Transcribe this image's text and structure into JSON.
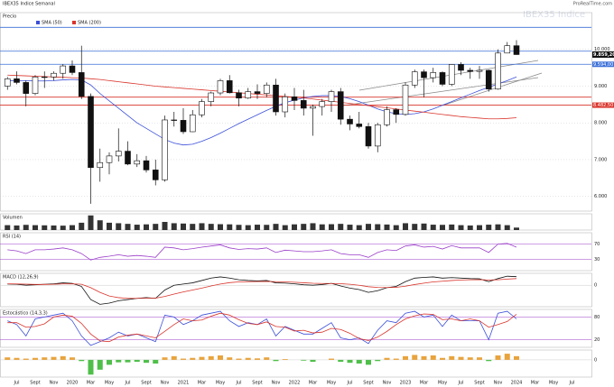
{
  "header": "IBEX35 Indice Semanal",
  "watermark": "IBEX35 Indice",
  "logo": "ProRealTime.com",
  "future_ticks": [
    "Mar",
    "May",
    "Jul"
  ],
  "chart_data": [
    {
      "type": "candlestick",
      "title": "Precio",
      "categories": [
        null,
        "Jul",
        null,
        "Sept",
        null,
        "Nov",
        null,
        "2020",
        null,
        "Mar",
        null,
        "May",
        null,
        "Jul",
        null,
        "Sept",
        null,
        "Nov",
        null,
        "2021",
        null,
        "Mar",
        null,
        "May",
        null,
        "Jul",
        null,
        "Sept",
        null,
        "Nov",
        null,
        "2022",
        null,
        "Mar",
        null,
        "May",
        null,
        "Jul",
        null,
        "Sept",
        null,
        "Nov",
        null,
        "2023",
        null,
        "Mar",
        null,
        "May",
        null,
        "Jul",
        null,
        "Sept",
        null,
        "Nov",
        null,
        "2024"
      ],
      "open": [
        9000,
        9200,
        9100,
        8800,
        9250,
        9250,
        9350,
        9550,
        9370,
        8720,
        6785,
        6920,
        7100,
        7230,
        6880,
        6970,
        6720,
        6450,
        8080,
        8070,
        7760,
        8220,
        8580,
        8815,
        9150,
        8820,
        8675,
        8850,
        8800,
        9030,
        8300,
        8710,
        8610,
        8400,
        8445,
        8580,
        8850,
        8100,
        7970,
        7900,
        7370,
        7950,
        8360,
        8230,
        9030,
        9390,
        9230,
        9370,
        9050,
        9590,
        9430,
        9400,
        9430,
        8920,
        9900,
        10100
      ],
      "high": [
        9250,
        9400,
        9150,
        9300,
        9400,
        9400,
        9600,
        9700,
        10100,
        8800,
        7300,
        7200,
        7850,
        7500,
        7150,
        7100,
        7000,
        8200,
        8300,
        8400,
        8350,
        8650,
        8850,
        9200,
        9300,
        8900,
        8950,
        9050,
        9100,
        9200,
        8800,
        8950,
        8900,
        8500,
        8650,
        8900,
        8950,
        8200,
        8300,
        8000,
        8000,
        8450,
        8400,
        9100,
        9450,
        9450,
        9500,
        9400,
        9600,
        9650,
        9500,
        9550,
        9450,
        10000,
        10200,
        10250
      ],
      "low": [
        8900,
        9050,
        8450,
        8750,
        8950,
        9150,
        9200,
        9300,
        8650,
        5800,
        6400,
        6600,
        6950,
        6850,
        6800,
        6650,
        6300,
        6400,
        7900,
        7700,
        7750,
        8150,
        8450,
        8750,
        8800,
        8450,
        8650,
        8650,
        8700,
        8200,
        8150,
        8350,
        8200,
        7650,
        8200,
        8300,
        7950,
        7800,
        7850,
        7300,
        7200,
        7900,
        8000,
        8200,
        8950,
        8700,
        9100,
        9000,
        9000,
        9300,
        9200,
        9200,
        8850,
        8900,
        9950,
        9850
      ],
      "close": [
        9200,
        9100,
        8800,
        9250,
        9250,
        9350,
        9550,
        9370,
        8720,
        6785,
        6920,
        7100,
        7230,
        6880,
        6970,
        6720,
        6450,
        8080,
        8070,
        7760,
        8220,
        8580,
        8815,
        9150,
        8820,
        8675,
        8850,
        8800,
        9030,
        8300,
        8710,
        8610,
        8400,
        8445,
        8580,
        8850,
        8100,
        7970,
        7900,
        7370,
        7950,
        8360,
        8230,
        9030,
        9390,
        9230,
        9370,
        9050,
        9590,
        9430,
        9400,
        9430,
        8920,
        9900,
        10100,
        9859.2
      ],
      "last_label": "9.859,20",
      "series": [
        {
          "name": "SMA (50)",
          "color": "#3b4fd8",
          "values": [
            9150,
            9150,
            9150,
            9140,
            9140,
            9150,
            9170,
            9180,
            9170,
            9030,
            8800,
            8600,
            8400,
            8200,
            8000,
            7850,
            7700,
            7550,
            7450,
            7400,
            7420,
            7500,
            7600,
            7720,
            7850,
            7980,
            8100,
            8220,
            8340,
            8450,
            8550,
            8620,
            8680,
            8720,
            8740,
            8740,
            8720,
            8660,
            8580,
            8480,
            8380,
            8300,
            8250,
            8230,
            8250,
            8300,
            8380,
            8480,
            8580,
            8680,
            8780,
            8880,
            8970,
            9060,
            9150,
            9250
          ]
        },
        {
          "name": "SMA (200)",
          "color": "#d9342b",
          "values": [
            9300,
            9290,
            9280,
            9270,
            9260,
            9250,
            9240,
            9230,
            9220,
            9200,
            9180,
            9150,
            9120,
            9090,
            9060,
            9030,
            9000,
            8980,
            8960,
            8940,
            8920,
            8900,
            8880,
            8860,
            8840,
            8820,
            8800,
            8780,
            8760,
            8740,
            8720,
            8700,
            8680,
            8650,
            8620,
            8590,
            8560,
            8530,
            8500,
            8470,
            8440,
            8410,
            8380,
            8350,
            8320,
            8290,
            8260,
            8230,
            8200,
            8170,
            8150,
            8130,
            8110,
            8110,
            8120,
            8140
          ]
        }
      ],
      "levels": [
        {
          "value": 10600,
          "color": "#3b6fd8"
        },
        {
          "value": 9950,
          "color": "#3b6fd8"
        },
        {
          "value": 9594,
          "label": "9.594,00",
          "color": "#3b6fd8"
        },
        {
          "value": 8700,
          "color": "#d9342b"
        },
        {
          "value": 8482.5,
          "label": "8.482,50",
          "color": "#d9342b"
        }
      ],
      "ylim": [
        5600,
        11000
      ],
      "yticks": [
        {
          "value": 10000,
          "label": "10.000"
        },
        {
          "value": 9000,
          "label": "9.000"
        },
        {
          "value": 8000,
          "label": "8.000"
        },
        {
          "value": 7000,
          "label": "7.000"
        },
        {
          "value": 6000,
          "label": "6.000"
        }
      ]
    },
    {
      "type": "bar",
      "title": "Volumen",
      "color": "#333333",
      "ylim": [
        0,
        1000
      ],
      "values": [
        300,
        280,
        320,
        300,
        290,
        280,
        270,
        300,
        450,
        900,
        600,
        450,
        420,
        380,
        330,
        350,
        380,
        500,
        420,
        400,
        380,
        420,
        380,
        360,
        350,
        320,
        300,
        330,
        320,
        380,
        300,
        350,
        380,
        420,
        350,
        360,
        380,
        330,
        300,
        380,
        360,
        340,
        300,
        420,
        380,
        400,
        330,
        320,
        340,
        300,
        280,
        300,
        330,
        350,
        300,
        150
      ]
    },
    {
      "type": "line",
      "title": "RSI (14)",
      "color": "#9b3fc9",
      "ylim": [
        0,
        100
      ],
      "yticks": [
        30,
        70
      ],
      "values": [
        55,
        52,
        45,
        55,
        55,
        57,
        60,
        55,
        45,
        28,
        35,
        38,
        42,
        38,
        40,
        38,
        35,
        62,
        60,
        55,
        58,
        62,
        65,
        68,
        60,
        56,
        58,
        57,
        60,
        48,
        54,
        52,
        50,
        50,
        52,
        55,
        45,
        42,
        42,
        35,
        48,
        55,
        53,
        65,
        68,
        62,
        64,
        57,
        66,
        60,
        60,
        60,
        48,
        70,
        72,
        62
      ]
    },
    {
      "type": "line",
      "title": "MACD (12,26,9)",
      "ylim": [
        -900,
        500
      ],
      "yticks": [
        0
      ],
      "series": [
        {
          "color": "#111111",
          "values": [
            50,
            40,
            0,
            20,
            40,
            60,
            100,
            80,
            -50,
            -600,
            -800,
            -750,
            -650,
            -600,
            -550,
            -520,
            -550,
            -200,
            0,
            50,
            100,
            200,
            300,
            350,
            300,
            230,
            200,
            180,
            200,
            100,
            90,
            60,
            20,
            0,
            30,
            80,
            -30,
            -120,
            -180,
            -300,
            -230,
            -100,
            -50,
            150,
            300,
            330,
            350,
            300,
            320,
            300,
            280,
            270,
            150,
            280,
            380,
            360
          ]
        },
        {
          "color": "#d9342b",
          "values": [
            60,
            55,
            45,
            35,
            35,
            40,
            55,
            60,
            40,
            -100,
            -300,
            -450,
            -520,
            -550,
            -550,
            -540,
            -540,
            -470,
            -370,
            -280,
            -200,
            -120,
            -30,
            50,
            110,
            140,
            150,
            155,
            160,
            150,
            140,
            125,
            105,
            85,
            75,
            75,
            65,
            40,
            0,
            -60,
            -90,
            -95,
            -85,
            -40,
            30,
            90,
            140,
            170,
            200,
            220,
            230,
            235,
            220,
            230,
            260,
            280
          ]
        }
      ]
    },
    {
      "type": "line",
      "title": "Estocástico (14,3,3)",
      "ylim": [
        0,
        100
      ],
      "yticks": [
        20,
        80
      ],
      "series": [
        {
          "color": "#3b4fd8",
          "values": [
            70,
            60,
            30,
            75,
            80,
            85,
            90,
            70,
            30,
            5,
            15,
            25,
            40,
            30,
            35,
            25,
            15,
            85,
            80,
            60,
            70,
            85,
            90,
            95,
            70,
            55,
            65,
            60,
            75,
            30,
            55,
            45,
            35,
            35,
            50,
            65,
            25,
            20,
            25,
            10,
            45,
            70,
            65,
            90,
            95,
            80,
            85,
            55,
            85,
            70,
            70,
            70,
            20,
            90,
            95,
            75
          ]
        },
        {
          "color": "#d9342b",
          "values": [
            65,
            65,
            53,
            55,
            62,
            80,
            85,
            82,
            63,
            35,
            17,
            15,
            27,
            32,
            35,
            30,
            25,
            42,
            60,
            75,
            70,
            72,
            82,
            90,
            85,
            73,
            63,
            60,
            67,
            55,
            53,
            43,
            45,
            38,
            40,
            50,
            47,
            37,
            23,
            18,
            27,
            42,
            60,
            75,
            83,
            88,
            87,
            73,
            75,
            70,
            75,
            70,
            53,
            60,
            68,
            87
          ]
        }
      ]
    },
    {
      "type": "bar",
      "color": "#e8a33c",
      "negative_color": "#4fbf4a",
      "ylim": [
        -70,
        40
      ],
      "yticks": [
        0
      ],
      "values": [
        10,
        8,
        5,
        8,
        10,
        12,
        15,
        10,
        -5,
        -60,
        -40,
        -20,
        -10,
        -10,
        -8,
        -12,
        -15,
        10,
        15,
        5,
        8,
        12,
        15,
        18,
        10,
        5,
        8,
        6,
        10,
        -5,
        3,
        0,
        -3,
        -8,
        0,
        5,
        -8,
        -12,
        -15,
        -20,
        -5,
        8,
        5,
        15,
        20,
        15,
        18,
        8,
        15,
        12,
        10,
        10,
        -5,
        18,
        25,
        15
      ]
    }
  ]
}
